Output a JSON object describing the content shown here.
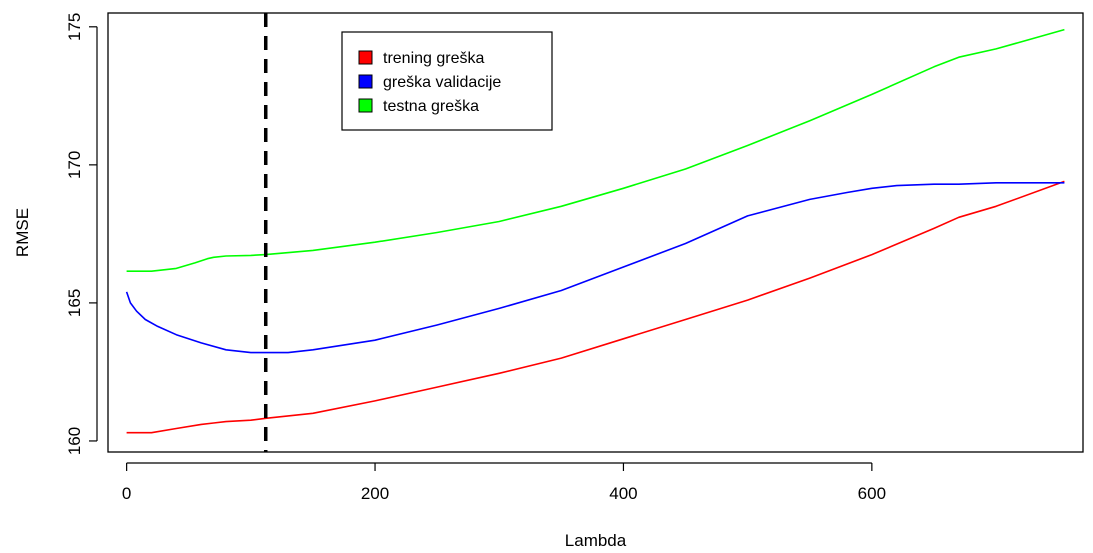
{
  "chart_data": {
    "type": "line",
    "title": "",
    "xlabel": "Lambda",
    "ylabel": "RMSE",
    "xlim": [
      -15,
      770
    ],
    "ylim": [
      159.6,
      175.5
    ],
    "x_ticks": [
      0,
      200,
      400,
      600
    ],
    "y_ticks": [
      160,
      165,
      170,
      175
    ],
    "legend_position": "top-center",
    "vline": {
      "x": 112,
      "style": "dashed",
      "color": "#000000"
    },
    "series": [
      {
        "name": "trening greška",
        "color": "#ff0000",
        "x": [
          0,
          20,
          40,
          60,
          70,
          80,
          100,
          112,
          150,
          200,
          250,
          300,
          350,
          400,
          450,
          500,
          550,
          600,
          650,
          670,
          700,
          755
        ],
        "values": [
          160.3,
          160.3,
          160.45,
          160.6,
          160.65,
          160.7,
          160.75,
          160.82,
          161.0,
          161.45,
          161.95,
          162.45,
          163.0,
          163.7,
          164.4,
          165.1,
          165.9,
          166.75,
          167.7,
          168.1,
          168.5,
          169.4
        ]
      },
      {
        "name": "greška validacije",
        "color": "#0000ff",
        "x": [
          0,
          3,
          8,
          15,
          25,
          40,
          60,
          80,
          100,
          112,
          130,
          150,
          200,
          250,
          300,
          350,
          400,
          450,
          500,
          550,
          580,
          600,
          620,
          650,
          670,
          700,
          755
        ],
        "values": [
          165.4,
          165.0,
          164.7,
          164.4,
          164.15,
          163.85,
          163.55,
          163.3,
          163.2,
          163.2,
          163.2,
          163.3,
          163.65,
          164.2,
          164.8,
          165.45,
          166.3,
          167.15,
          168.15,
          168.75,
          169.0,
          169.15,
          169.25,
          169.3,
          169.3,
          169.35,
          169.35
        ]
      },
      {
        "name": "testna greška",
        "color": "#00ff00",
        "x": [
          0,
          20,
          40,
          55,
          65,
          70,
          80,
          100,
          112,
          150,
          200,
          250,
          300,
          350,
          400,
          450,
          500,
          550,
          600,
          650,
          670,
          700,
          755
        ],
        "values": [
          166.15,
          166.15,
          166.25,
          166.45,
          166.6,
          166.65,
          166.7,
          166.72,
          166.75,
          166.9,
          167.2,
          167.55,
          167.95,
          168.5,
          169.15,
          169.85,
          170.7,
          171.6,
          172.55,
          173.55,
          173.9,
          174.2,
          174.9
        ]
      }
    ]
  }
}
